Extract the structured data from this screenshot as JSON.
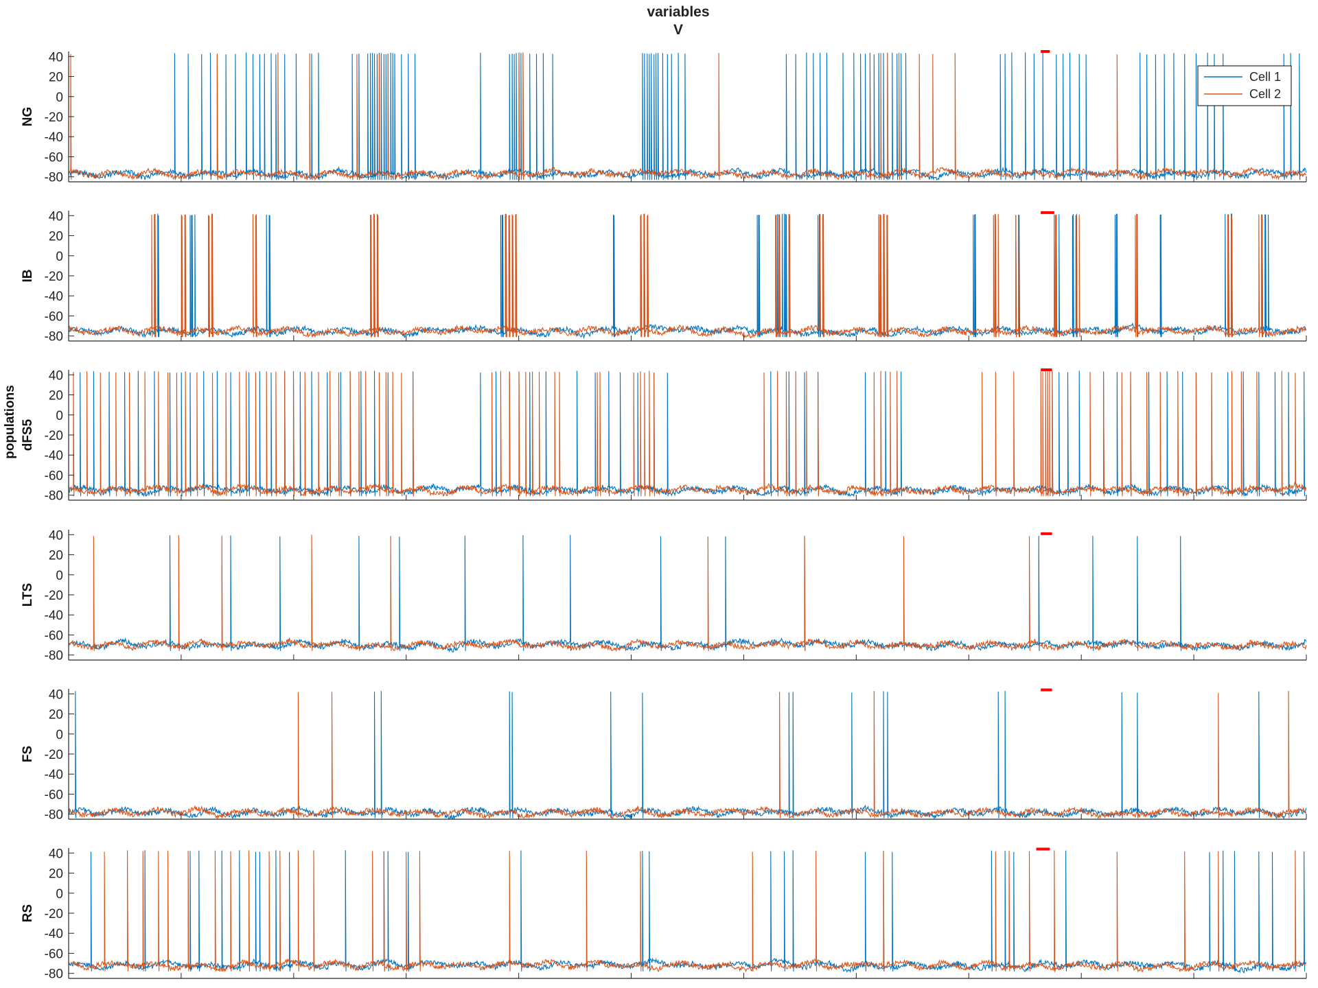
{
  "chart_data": {
    "type": "line",
    "title": "variables",
    "subtitle": "V",
    "ylabel_outer_top": "populations",
    "xlim": [
      0,
      5500
    ],
    "ylim": [
      -85,
      45
    ],
    "x_ticks": [
      500,
      1000,
      1500,
      2000,
      2500,
      3000,
      3500,
      4000,
      4500,
      5000,
      5500
    ],
    "y_ticks": [
      40,
      20,
      0,
      -20,
      -40,
      -60,
      -80
    ],
    "legend": {
      "position": "top-right",
      "entries": [
        {
          "name": "Cell 1",
          "color": "#0072BD"
        },
        {
          "name": "Cell 2",
          "color": "#D95319"
        }
      ]
    },
    "marker_color": "#FF0000",
    "panels": [
      {
        "name": "NG",
        "baseline": -77,
        "spike_peak": 44,
        "marker": [
          4320,
          4360
        ],
        "series": [
          {
            "name": "Cell 1",
            "color": "#0072BD",
            "spikes": [
              470,
              530,
              590,
              630,
              660,
              700,
              740,
              790,
              820,
              850,
              870,
              900,
              920,
              960,
              1010,
              1080,
              1110,
              1260,
              1290,
              1330,
              1340,
              1350,
              1360,
              1370,
              1380,
              1390,
              1400,
              1410,
              1420,
              1430,
              1440,
              1450,
              1480,
              1510,
              1540,
              1830,
              1960,
              1970,
              1980,
              1990,
              2000,
              2010,
              2020,
              2050,
              2080,
              2110,
              2150,
              2550,
              2560,
              2570,
              2580,
              2590,
              2600,
              2610,
              2620,
              2640,
              2660,
              2680,
              2710,
              2740,
              3190,
              3230,
              3280,
              3310,
              3340,
              3370,
              3440,
              3490,
              3520,
              3540,
              3560,
              3580,
              3600,
              3620,
              3640,
              3660,
              3680,
              3700,
              3720,
              4140,
              4160,
              4190,
              4250,
              4290,
              4330,
              4390,
              4420,
              4450,
              4490,
              4520,
              4760,
              4790,
              4830,
              4870,
              4910,
              4960,
              5010,
              5060,
              5090,
              5130,
              5400,
              5430,
              5470
            ]
          },
          {
            "name": "Cell 2",
            "color": "#D95319",
            "spikes": [
              10,
              660,
              930,
              1070,
              1280,
              1380,
              1420,
              2000,
              2020,
              2890,
              3560,
              3610,
              3640,
              3690,
              3780,
              3840,
              3940,
              4660
            ]
          }
        ]
      },
      {
        "name": "IB",
        "baseline": -75,
        "spike_peak": 42,
        "marker": [
          4320,
          4380
        ],
        "series": [
          {
            "name": "Cell 1",
            "color": "#0072BD",
            "bursts": [
              [
                380,
                400
              ],
              [
                540,
                560
              ],
              [
                880,
                900
              ],
              [
                1920,
                1950
              ],
              [
                2420,
                2430
              ],
              [
                3060,
                3070
              ],
              [
                3150,
                3170
              ],
              [
                3180,
                3200
              ],
              [
                3330,
                3350
              ],
              [
                3600,
                3620
              ],
              [
                4020,
                4030
              ],
              [
                4210,
                4230
              ],
              [
                4380,
                4400
              ],
              [
                4460,
                4480
              ],
              [
                4650,
                4660
              ],
              [
                4850,
                4860
              ],
              [
                5140,
                5170
              ],
              [
                5300,
                5330
              ]
            ]
          },
          {
            "name": "Cell 2",
            "color": "#D95319",
            "bursts": [
              [
                370,
                390
              ],
              [
                500,
                520
              ],
              [
                620,
                640
              ],
              [
                820,
                840
              ],
              [
                1340,
                1380
              ],
              [
                1940,
                1990
              ],
              [
                2540,
                2580
              ],
              [
                3140,
                3160
              ],
              [
                3200,
                3210
              ],
              [
                3340,
                3360
              ],
              [
                3600,
                3640
              ],
              [
                4110,
                4130
              ],
              [
                4210,
                4220
              ],
              [
                4380,
                4390
              ],
              [
                4480,
                4490
              ],
              [
                4740,
                4750
              ],
              [
                5150,
                5170
              ],
              [
                5290,
                5310
              ]
            ]
          }
        ]
      },
      {
        "name": "dFS5",
        "baseline": -75,
        "spike_peak": 44,
        "marker": [
          4320,
          4370
        ],
        "series": [
          {
            "name": "Cell 1",
            "color": "#0072BD",
            "spikes": [
              50,
              110,
              180,
              250,
              310,
              380,
              450,
              500,
              540,
              600,
              660,
              720,
              800,
              850,
              900,
              960,
              1000,
              1030,
              1080,
              1150,
              1210,
              1250,
              1300,
              1360,
              1420,
              1530,
              1830,
              1900,
              1960,
              2000,
              2050,
              2120,
              2260,
              2340,
              2400,
              2450,
              2530,
              2600,
              2660,
              3120,
              3200,
              3270,
              3330,
              3540,
              3630,
              3700,
              4370,
              4400,
              4440,
              4490,
              4600,
              4660,
              4720,
              4800,
              4880,
              4950,
              5010,
              5080,
              5150,
              5220,
              5290,
              5360,
              5420,
              5490
            ]
          },
          {
            "name": "Cell 2",
            "color": "#D95319",
            "spikes": [
              20,
              80,
              140,
              210,
              270,
              340,
              400,
              440,
              480,
              520,
              570,
              640,
              700,
              760,
              790,
              830,
              880,
              920,
              960,
              1000,
              1050,
              1110,
              1160,
              1200,
              1250,
              1290,
              1320,
              1380,
              1410,
              1440,
              1480,
              1530,
              1880,
              1920,
              1960,
              2000,
              2030,
              2060,
              2090,
              2160,
              2180,
              2350,
              2360,
              2510,
              2540,
              2560,
              2580,
              2600,
              3090,
              3150,
              3190,
              3230,
              3280,
              3330,
              3580,
              3610,
              3650,
              3680,
              4060,
              4120,
              4200,
              4320,
              4330,
              4340,
              4350,
              4360,
              4370,
              4540,
              4600,
              4680,
              4720,
              4790,
              4850,
              4930,
              5010,
              5080,
              5170,
              5210,
              5280,
              5390,
              5450
            ]
          }
        ]
      },
      {
        "name": "LTS",
        "baseline": -70,
        "spike_peak": 40,
        "marker": [
          4320,
          4370
        ],
        "series": [
          {
            "name": "Cell 1",
            "color": "#0072BD",
            "spikes": [
              450,
              720,
              940,
              1290,
              1470,
              1760,
              2020,
              2230,
              2630,
              2920,
              3270,
              4310,
              4550,
              4750,
              4940
            ]
          },
          {
            "name": "Cell 2",
            "color": "#D95319",
            "spikes": [
              110,
              490,
              680,
              1080,
              1430,
              2840,
              3270,
              3710,
              4270
            ]
          }
        ]
      },
      {
        "name": "FS",
        "baseline": -78,
        "spike_peak": 43,
        "marker": [
          4320,
          4370
        ],
        "series": [
          {
            "name": "Cell 1",
            "color": "#0072BD",
            "spikes": [
              30,
              1360,
              1390,
              1960,
              1970,
              2410,
              2550,
              3200,
              3220,
              3480,
              3620,
              3640,
              4130,
              4160,
              4680,
              4750,
              5290
            ]
          },
          {
            "name": "Cell 2",
            "color": "#D95319",
            "spikes": [
              1020,
              1170,
              3160,
              3580,
              5110,
              5420
            ]
          }
        ]
      },
      {
        "name": "RS",
        "baseline": -72,
        "spike_peak": 43,
        "marker": [
          4300,
          4360
        ],
        "series": [
          {
            "name": "Cell 1",
            "color": "#0072BD",
            "spikes": [
              100,
              340,
              540,
              580,
              680,
              760,
              830,
              850,
              920,
              980,
              1230,
              1400,
              1420,
              1510,
              2010,
              2550,
              2580,
              3120,
              3180,
              3220,
              3540,
              3620,
              3660,
              4100,
              4160,
              4200,
              4430,
              5070,
              5130,
              5180,
              5290,
              5350,
              5490
            ]
          },
          {
            "name": "Cell 2",
            "color": "#D95319",
            "spikes": [
              160,
              260,
              330,
              400,
              440,
              530,
              650,
              720,
              800,
              890,
              940,
              1020,
              1090,
              1350,
              1400,
              1500,
              1560,
              1960,
              2300,
              2540,
              3040,
              3320,
              3620,
              4120,
              4180,
              4270,
              4380,
              4660,
              4960,
              5110,
              5450
            ]
          }
        ]
      }
    ]
  }
}
